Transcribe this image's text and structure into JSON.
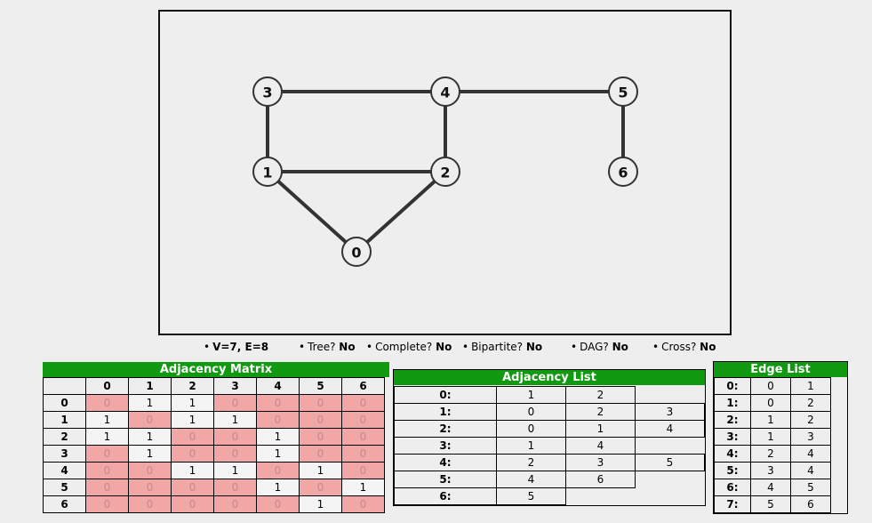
{
  "graph": {
    "nodes": [
      {
        "id": "0",
        "label": "0",
        "gx": 1,
        "gy": 2
      },
      {
        "id": "1",
        "label": "1",
        "gx": 0,
        "gy": 1
      },
      {
        "id": "2",
        "label": "2",
        "gx": 2,
        "gy": 1
      },
      {
        "id": "3",
        "label": "3",
        "gx": 0,
        "gy": 0
      },
      {
        "id": "4",
        "label": "4",
        "gx": 2,
        "gy": 0
      },
      {
        "id": "5",
        "label": "5",
        "gx": 4,
        "gy": 0
      },
      {
        "id": "6",
        "label": "6",
        "gx": 4,
        "gy": 1
      }
    ],
    "edges": [
      [
        0,
        1
      ],
      [
        0,
        2
      ],
      [
        1,
        2
      ],
      [
        1,
        3
      ],
      [
        2,
        4
      ],
      [
        3,
        4
      ],
      [
        4,
        5
      ],
      [
        5,
        6
      ]
    ]
  },
  "stats": {
    "ve": "V=7, E=8",
    "tree_label": "Tree?",
    "tree_value": "No",
    "complete_label": "Complete?",
    "complete_value": "No",
    "bipartite_label": "Bipartite?",
    "bipartite_value": "No",
    "dag_label": "DAG?",
    "dag_value": "No",
    "cross_label": "Cross?",
    "cross_value": "No"
  },
  "matrix": {
    "title": "Adjacency Matrix",
    "cols": [
      "0",
      "1",
      "2",
      "3",
      "4",
      "5",
      "6"
    ],
    "rows": [
      {
        "label": "0",
        "vals": [
          "0",
          "1",
          "1",
          "0",
          "0",
          "0",
          "0"
        ]
      },
      {
        "label": "1",
        "vals": [
          "1",
          "0",
          "1",
          "1",
          "0",
          "0",
          "0"
        ]
      },
      {
        "label": "2",
        "vals": [
          "1",
          "1",
          "0",
          "0",
          "1",
          "0",
          "0"
        ]
      },
      {
        "label": "3",
        "vals": [
          "0",
          "1",
          "0",
          "0",
          "1",
          "0",
          "0"
        ]
      },
      {
        "label": "4",
        "vals": [
          "0",
          "0",
          "1",
          "1",
          "0",
          "1",
          "0"
        ]
      },
      {
        "label": "5",
        "vals": [
          "0",
          "0",
          "0",
          "0",
          "1",
          "0",
          "1"
        ]
      },
      {
        "label": "6",
        "vals": [
          "0",
          "0",
          "0",
          "0",
          "0",
          "1",
          "0"
        ]
      }
    ]
  },
  "adjlist": {
    "title": "Adjacency List",
    "rows": [
      {
        "label": "0:",
        "vals": [
          "1",
          "2"
        ]
      },
      {
        "label": "1:",
        "vals": [
          "0",
          "2",
          "3"
        ]
      },
      {
        "label": "2:",
        "vals": [
          "0",
          "1",
          "4"
        ]
      },
      {
        "label": "3:",
        "vals": [
          "1",
          "4"
        ]
      },
      {
        "label": "4:",
        "vals": [
          "2",
          "3",
          "5"
        ]
      },
      {
        "label": "5:",
        "vals": [
          "4",
          "6"
        ]
      },
      {
        "label": "6:",
        "vals": [
          "5"
        ]
      }
    ]
  },
  "edgelist": {
    "title": "Edge List",
    "rows": [
      {
        "label": "0:",
        "u": "0",
        "v": "1"
      },
      {
        "label": "1:",
        "u": "0",
        "v": "2"
      },
      {
        "label": "2:",
        "u": "1",
        "v": "2"
      },
      {
        "label": "3:",
        "u": "1",
        "v": "3"
      },
      {
        "label": "4:",
        "u": "2",
        "v": "4"
      },
      {
        "label": "5:",
        "u": "3",
        "v": "4"
      },
      {
        "label": "6:",
        "u": "4",
        "v": "5"
      },
      {
        "label": "7:",
        "u": "5",
        "v": "6"
      }
    ]
  }
}
